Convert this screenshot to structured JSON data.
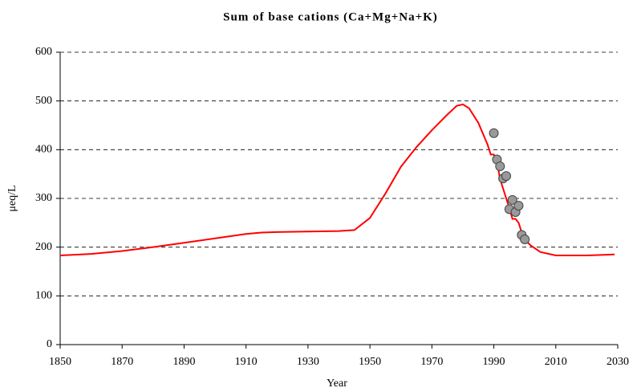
{
  "chart_data": {
    "type": "line",
    "title": "Sum of base cations (Ca+Mg+Na+K)",
    "x_label": "Year",
    "y_label": "μeq/L",
    "xlim": [
      1850,
      2030
    ],
    "xticks": [
      1850,
      1870,
      1890,
      1910,
      1930,
      1950,
      1970,
      1990,
      2010,
      2030
    ],
    "ylim": [
      0,
      600
    ],
    "yticks": [
      0,
      100,
      200,
      300,
      400,
      500,
      600
    ],
    "grid": true,
    "series": [
      {
        "type": "line",
        "color": "#ff0000",
        "x": [
          1850,
          1860,
          1870,
          1880,
          1890,
          1900,
          1910,
          1915,
          1920,
          1930,
          1940,
          1945,
          1950,
          1955,
          1960,
          1965,
          1970,
          1975,
          1978,
          1980,
          1982,
          1985,
          1988,
          1989,
          1990,
          1991,
          1992,
          1993,
          1994,
          1995,
          1996,
          1997,
          1998,
          1999,
          2000,
          2002,
          2005,
          2010,
          2020,
          2029
        ],
        "values": [
          183,
          186,
          192,
          200,
          209,
          218,
          227,
          230,
          231,
          232,
          233,
          235,
          260,
          310,
          365,
          405,
          440,
          472,
          490,
          493,
          485,
          455,
          410,
          390,
          390,
          375,
          340,
          320,
          300,
          280,
          258,
          258,
          250,
          230,
          215,
          203,
          190,
          183,
          183,
          185
        ]
      },
      {
        "type": "scatter",
        "color": "#999999",
        "x": [
          1990,
          1991,
          1992,
          1993,
          1994,
          1995,
          1996,
          1997,
          1998,
          1999,
          2000
        ],
        "values": [
          434,
          380,
          366,
          341,
          346,
          278,
          297,
          272,
          285,
          225,
          216
        ]
      }
    ]
  }
}
